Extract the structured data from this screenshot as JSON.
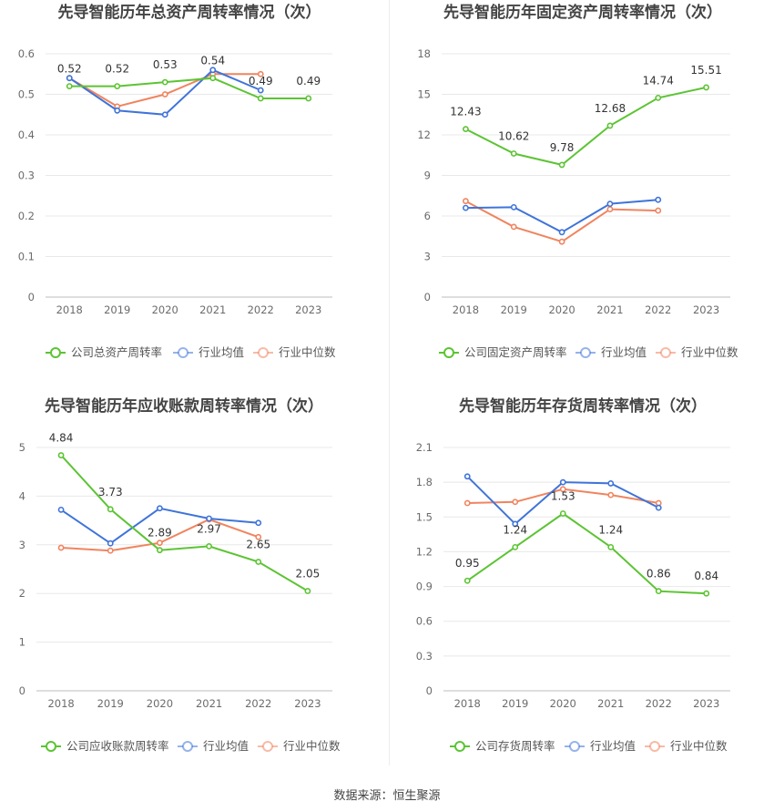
{
  "source": "数据来源：恒生聚源",
  "colors": {
    "company": "#5cc433",
    "avg": "#3f74d9",
    "median": "#f0845f"
  },
  "chart_data": [
    {
      "type": "line",
      "title": "先导智能历年总资产周转率情况（次）",
      "categories": [
        "2018",
        "2019",
        "2020",
        "2021",
        "2022",
        "2023"
      ],
      "ylim": [
        0,
        0.6
      ],
      "yticks": [
        "0",
        "0.1",
        "0.2",
        "0.3",
        "0.4",
        "0.5",
        "0.6"
      ],
      "series": [
        {
          "name": "公司总资产周转率",
          "key": "company",
          "values": [
            0.52,
            0.52,
            0.53,
            0.54,
            0.49,
            0.49
          ],
          "labels": [
            "0.52",
            "0.52",
            "0.53",
            "0.54",
            "0.49",
            "0.49"
          ]
        },
        {
          "name": "行业均值",
          "key": "avg",
          "values": [
            0.54,
            0.46,
            0.45,
            0.56,
            0.51,
            null
          ]
        },
        {
          "name": "行业中位数",
          "key": "median",
          "values": [
            0.54,
            0.47,
            0.5,
            0.55,
            0.55,
            null
          ]
        }
      ]
    },
    {
      "type": "line",
      "title": "先导智能历年固定资产周转率情况（次）",
      "categories": [
        "2018",
        "2019",
        "2020",
        "2021",
        "2022",
        "2023"
      ],
      "ylim": [
        0,
        18
      ],
      "yticks": [
        "0",
        "3",
        "6",
        "9",
        "12",
        "15",
        "18"
      ],
      "series": [
        {
          "name": "公司固定资产周转率",
          "key": "company",
          "values": [
            12.43,
            10.62,
            9.78,
            12.68,
            14.74,
            15.51
          ],
          "labels": [
            "12.43",
            "10.62",
            "9.78",
            "12.68",
            "14.74",
            "15.51"
          ]
        },
        {
          "name": "行业均值",
          "key": "avg",
          "values": [
            6.6,
            6.65,
            4.8,
            6.9,
            7.2,
            null
          ]
        },
        {
          "name": "行业中位数",
          "key": "median",
          "values": [
            7.1,
            5.2,
            4.1,
            6.5,
            6.4,
            null
          ]
        }
      ]
    },
    {
      "type": "line",
      "title": "先导智能历年应收账款周转率情况（次）",
      "categories": [
        "2018",
        "2019",
        "2020",
        "2021",
        "2022",
        "2023"
      ],
      "ylim": [
        0,
        5
      ],
      "yticks": [
        "0",
        "1",
        "2",
        "3",
        "4",
        "5"
      ],
      "series": [
        {
          "name": "公司应收账款周转率",
          "key": "company",
          "values": [
            4.84,
            3.73,
            2.89,
            2.97,
            2.65,
            2.05
          ],
          "labels": [
            "4.84",
            "3.73",
            "2.89",
            "2.97",
            "2.65",
            "2.05"
          ]
        },
        {
          "name": "行业均值",
          "key": "avg",
          "values": [
            3.72,
            3.03,
            3.75,
            3.54,
            3.45,
            null
          ]
        },
        {
          "name": "行业中位数",
          "key": "median",
          "values": [
            2.94,
            2.88,
            3.04,
            3.52,
            3.16,
            null
          ]
        }
      ]
    },
    {
      "type": "line",
      "title": "先导智能历年存货周转率情况（次）",
      "categories": [
        "2018",
        "2019",
        "2020",
        "2021",
        "2022",
        "2023"
      ],
      "ylim": [
        0,
        2.1
      ],
      "yticks": [
        "0",
        "0.3",
        "0.6",
        "0.9",
        "1.2",
        "1.5",
        "1.8",
        "2.1"
      ],
      "series": [
        {
          "name": "公司存货周转率",
          "key": "company",
          "values": [
            0.95,
            1.24,
            1.53,
            1.24,
            0.86,
            0.84
          ],
          "labels": [
            "0.95",
            "1.24",
            "1.53",
            "1.24",
            "0.86",
            "0.84"
          ]
        },
        {
          "name": "行业均值",
          "key": "avg",
          "values": [
            1.85,
            1.44,
            1.8,
            1.79,
            1.58,
            null
          ]
        },
        {
          "name": "行业中位数",
          "key": "median",
          "values": [
            1.62,
            1.63,
            1.74,
            1.69,
            1.62,
            null
          ]
        }
      ]
    }
  ]
}
